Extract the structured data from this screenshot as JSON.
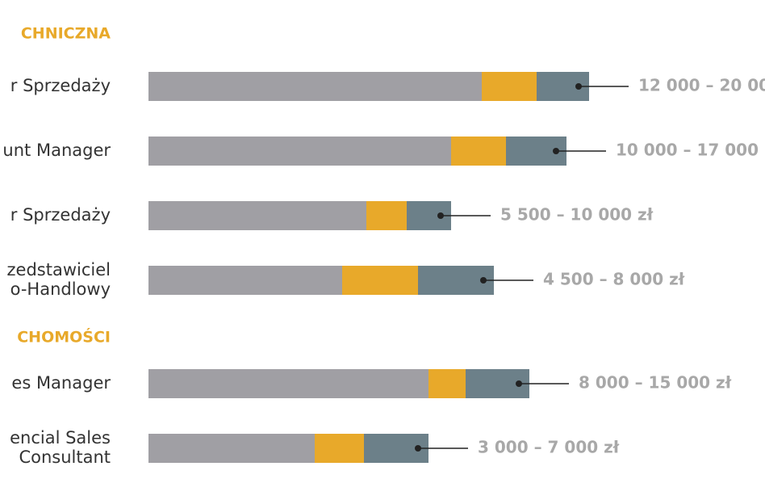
{
  "chart_data": [
    {
      "type": "bar",
      "orientation": "horizontal",
      "stacked": true,
      "title": "CHNICZNA",
      "categories": [
        [
          "r Sprzedaży"
        ],
        [
          "unt Manager"
        ],
        [
          "r Sprzedaży"
        ],
        [
          "zedstawiciel",
          "o-Handlowy"
        ]
      ],
      "series": [
        {
          "color": "#a09fa4",
          "values": [
            413,
            375,
            270,
            240
          ]
        },
        {
          "color": "#e8a92a",
          "values": [
            68,
            68,
            50,
            94
          ]
        },
        {
          "color": "#6c8089",
          "values": [
            65,
            75,
            55,
            94
          ]
        }
      ],
      "range_labels": [
        "12 000 – 20 00",
        "10 000 – 17 000",
        "5 500 – 10 000 zł",
        "4 500 – 8 000 zł"
      ]
    },
    {
      "type": "bar",
      "orientation": "horizontal",
      "stacked": true,
      "title": "CHOMOŚCI",
      "categories": [
        [
          "es Manager"
        ],
        [
          "encial Sales",
          "Consultant"
        ]
      ],
      "series": [
        {
          "color": "#a09fa4",
          "values": [
            347,
            206
          ]
        },
        {
          "color": "#e8a92a",
          "values": [
            46,
            61
          ]
        },
        {
          "color": "#6c8089",
          "values": [
            79,
            80
          ]
        }
      ],
      "range_labels": [
        "8 000 – 15 000 zł",
        "3 000 – 7 000 zł"
      ]
    }
  ]
}
